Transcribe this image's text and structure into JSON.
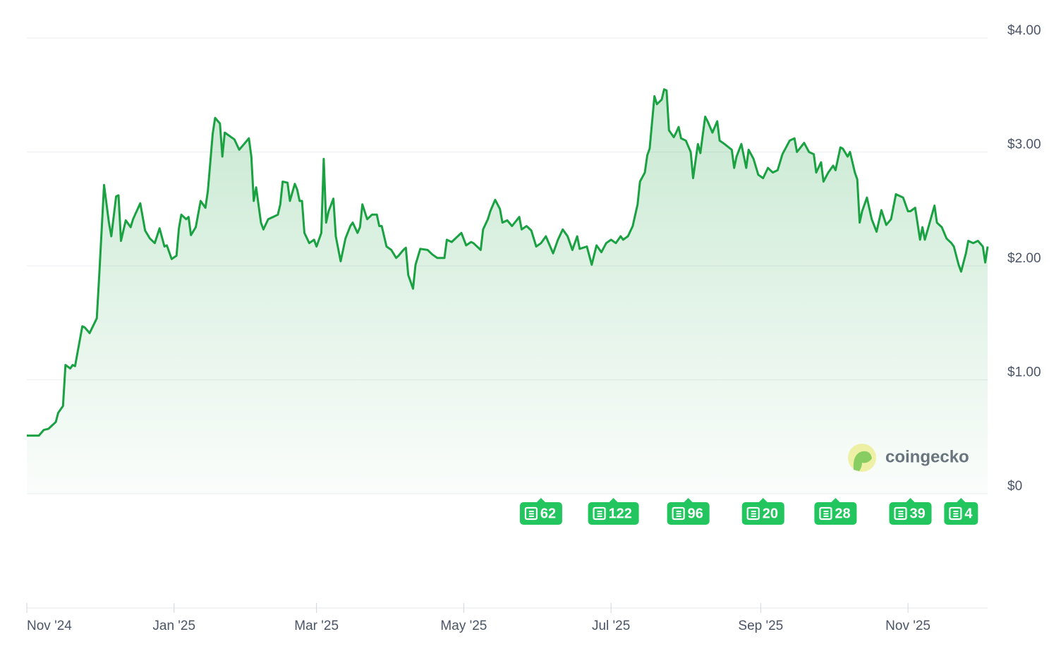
{
  "chart_data": {
    "type": "line",
    "watermark": "coingecko",
    "color": "#1aa142",
    "grid": true,
    "xlim": [
      0,
      398
    ],
    "xticks": [
      {
        "value": 0,
        "label": "Nov '24"
      },
      {
        "value": 61,
        "label": "Jan '25"
      },
      {
        "value": 120,
        "label": "Mar '25"
      },
      {
        "value": 181,
        "label": "May '25"
      },
      {
        "value": 242,
        "label": "Jul '25"
      },
      {
        "value": 304,
        "label": "Sep '25"
      },
      {
        "value": 365,
        "label": "Nov '25"
      }
    ],
    "ylim": [
      0,
      4
    ],
    "yticks": [
      {
        "value": 0,
        "label": "$0"
      },
      {
        "value": 1,
        "label": "$1.00"
      },
      {
        "value": 2,
        "label": "$2.00"
      },
      {
        "value": 3,
        "label": "$3.00"
      },
      {
        "value": 4,
        "label": "$4.00"
      }
    ],
    "x": [
      0,
      5,
      7,
      9,
      12,
      13,
      15,
      16,
      18,
      19,
      20,
      23,
      24,
      26,
      29,
      30,
      32,
      34,
      35,
      37,
      38,
      39,
      41,
      43,
      44,
      47,
      49,
      51,
      53,
      55,
      57,
      58,
      60,
      62,
      63,
      64,
      66,
      67,
      68,
      70,
      72,
      74,
      75,
      77,
      78,
      80,
      81,
      82,
      84,
      86,
      88,
      90,
      92,
      93,
      94,
      95,
      97,
      98,
      100,
      102,
      104,
      105,
      106,
      108,
      109,
      111,
      112,
      113,
      114,
      115,
      117,
      119,
      120,
      122,
      123,
      124,
      125,
      127,
      128,
      130,
      132,
      134,
      135,
      137,
      138,
      139,
      141,
      143,
      145,
      146,
      147,
      149,
      151,
      153,
      154,
      156,
      157,
      158,
      160,
      161,
      163,
      166,
      168,
      170,
      173,
      174,
      176,
      177,
      180,
      182,
      184,
      185,
      188,
      189,
      191,
      192,
      194,
      196,
      197,
      199,
      201,
      204,
      205,
      207,
      209,
      211,
      213,
      215,
      218,
      220,
      222,
      224,
      226,
      228,
      229,
      232,
      234,
      236,
      238,
      240,
      242,
      244,
      246,
      247,
      249,
      251,
      253,
      254,
      256,
      257,
      258,
      260,
      261,
      263,
      264,
      265,
      266,
      268,
      269,
      270,
      271,
      273,
      275,
      276,
      278,
      279,
      281,
      282,
      284,
      286,
      287,
      289,
      292,
      293,
      294,
      296,
      298,
      299,
      301,
      303,
      305,
      307,
      309,
      311,
      313,
      316,
      318,
      319,
      322,
      324,
      326,
      327,
      329,
      330,
      332,
      334,
      335,
      337,
      338,
      340,
      341,
      343,
      344,
      345,
      346,
      348,
      350,
      352,
      354,
      356,
      358,
      360,
      363,
      365,
      366,
      368,
      370,
      371,
      372,
      374,
      376,
      377,
      379,
      381,
      383,
      384,
      386,
      387,
      389,
      390,
      392,
      394,
      396,
      397,
      398
    ],
    "values": [
      0.51,
      0.51,
      0.56,
      0.57,
      0.63,
      0.71,
      0.77,
      1.13,
      1.1,
      1.13,
      1.12,
      1.47,
      1.46,
      1.41,
      1.54,
      1.92,
      2.71,
      2.38,
      2.26,
      2.61,
      2.62,
      2.22,
      2.4,
      2.34,
      2.41,
      2.55,
      2.31,
      2.24,
      2.2,
      2.33,
      2.17,
      2.18,
      2.06,
      2.09,
      2.33,
      2.45,
      2.41,
      2.43,
      2.27,
      2.34,
      2.57,
      2.51,
      2.66,
      3.16,
      3.3,
      3.25,
      2.96,
      3.17,
      3.14,
      3.11,
      3.02,
      3.07,
      3.12,
      2.96,
      2.57,
      2.69,
      2.38,
      2.32,
      2.41,
      2.43,
      2.45,
      2.54,
      2.74,
      2.73,
      2.57,
      2.72,
      2.67,
      2.57,
      2.57,
      2.29,
      2.2,
      2.23,
      2.17,
      2.29,
      2.94,
      2.38,
      2.48,
      2.59,
      2.26,
      2.04,
      2.24,
      2.35,
      2.38,
      2.29,
      2.34,
      2.54,
      2.41,
      2.45,
      2.45,
      2.35,
      2.35,
      2.17,
      2.14,
      2.07,
      2.09,
      2.14,
      2.16,
      1.92,
      1.8,
      2.01,
      2.15,
      2.14,
      2.1,
      2.07,
      2.07,
      2.23,
      2.21,
      2.23,
      2.29,
      2.18,
      2.21,
      2.2,
      2.14,
      2.32,
      2.41,
      2.48,
      2.58,
      2.5,
      2.38,
      2.4,
      2.35,
      2.43,
      2.32,
      2.35,
      2.31,
      2.17,
      2.2,
      2.26,
      2.11,
      2.23,
      2.32,
      2.26,
      2.14,
      2.26,
      2.15,
      2.17,
      2.01,
      2.18,
      2.12,
      2.2,
      2.23,
      2.2,
      2.26,
      2.23,
      2.26,
      2.35,
      2.54,
      2.74,
      2.82,
      2.97,
      3.03,
      3.49,
      3.42,
      3.46,
      3.55,
      3.54,
      3.19,
      3.13,
      3.17,
      3.22,
      3.12,
      3.1,
      3.0,
      2.77,
      3.07,
      2.99,
      3.31,
      3.27,
      3.17,
      3.27,
      3.1,
      3.07,
      3.02,
      2.86,
      2.96,
      3.07,
      2.86,
      3.02,
      2.94,
      2.8,
      2.77,
      2.86,
      2.82,
      2.84,
      2.98,
      3.1,
      3.12,
      3.0,
      3.08,
      3.0,
      2.98,
      2.82,
      2.91,
      2.74,
      2.82,
      2.88,
      2.84,
      3.04,
      3.03,
      2.96,
      3.0,
      2.82,
      2.76,
      2.38,
      2.48,
      2.6,
      2.41,
      2.3,
      2.49,
      2.36,
      2.41,
      2.63,
      2.6,
      2.48,
      2.48,
      2.51,
      2.23,
      2.34,
      2.23,
      2.38,
      2.53,
      2.38,
      2.34,
      2.24,
      2.2,
      2.17,
      2.01,
      1.95,
      2.11,
      2.22,
      2.2,
      2.22,
      2.17,
      2.03,
      2.17
    ],
    "news": [
      {
        "x": 213,
        "count": 62
      },
      {
        "x": 243,
        "count": 122
      },
      {
        "x": 274,
        "count": 96
      },
      {
        "x": 305,
        "count": 20
      },
      {
        "x": 335,
        "count": 28
      },
      {
        "x": 366,
        "count": 39
      },
      {
        "x": 387,
        "count": 4
      }
    ]
  }
}
